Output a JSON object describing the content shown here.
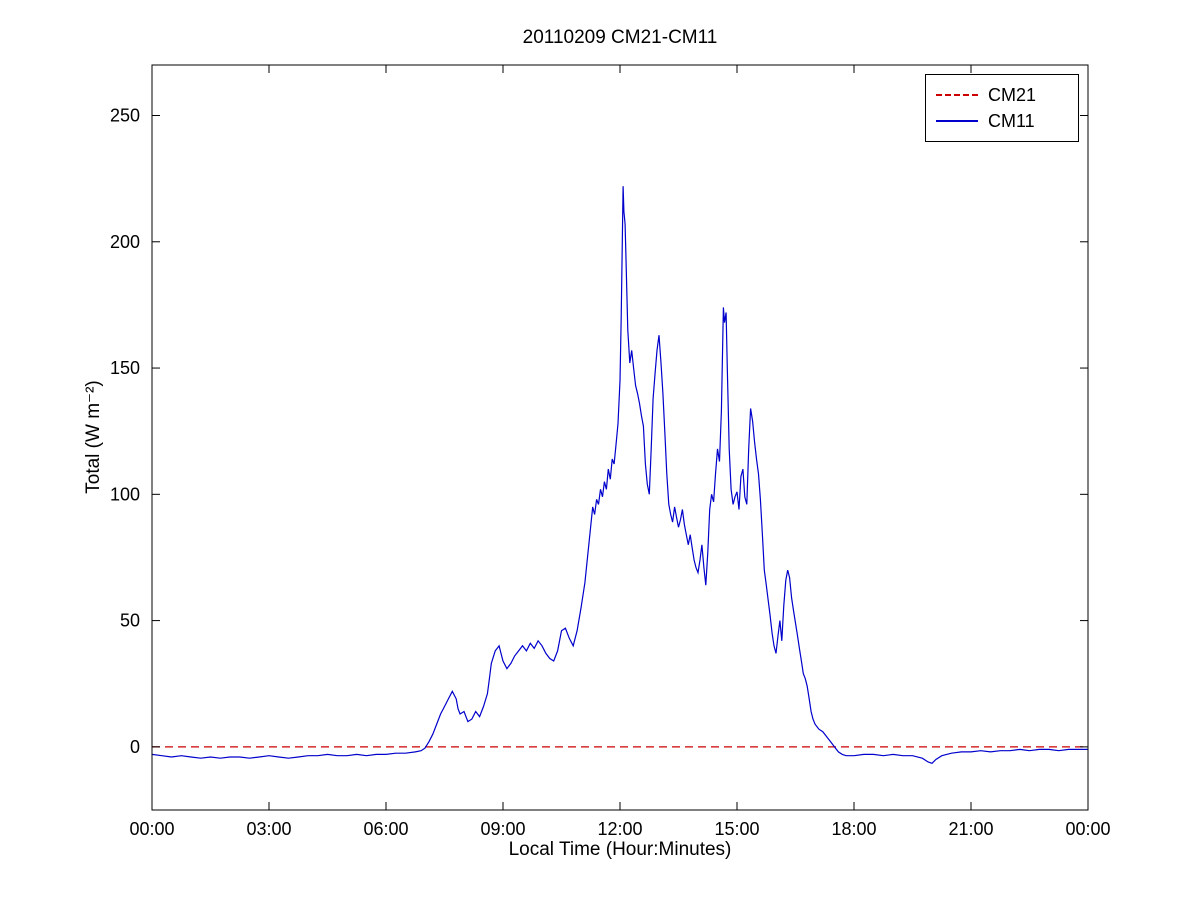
{
  "chart_data": {
    "type": "line",
    "title": "20110209 CM21-CM11",
    "xlabel": "Local Time (Hour:Minutes)",
    "ylabel": "Total (W m⁻²)",
    "xlim": [
      0,
      24
    ],
    "ylim": [
      -25,
      270
    ],
    "grid": false,
    "legend_position": "top-right",
    "xticks": [
      {
        "v": 0,
        "label": "00:00"
      },
      {
        "v": 3,
        "label": "03:00"
      },
      {
        "v": 6,
        "label": "06:00"
      },
      {
        "v": 9,
        "label": "09:00"
      },
      {
        "v": 12,
        "label": "12:00"
      },
      {
        "v": 15,
        "label": "15:00"
      },
      {
        "v": 18,
        "label": "18:00"
      },
      {
        "v": 21,
        "label": "21:00"
      },
      {
        "v": 24,
        "label": "00:00"
      }
    ],
    "yticks": [
      0,
      50,
      100,
      150,
      200,
      250
    ],
    "series": [
      {
        "name": "CM21",
        "color": "#cc0000",
        "line_style": "dashed",
        "points": [
          [
            0,
            0
          ],
          [
            24,
            0
          ]
        ]
      },
      {
        "name": "CM11",
        "color": "#0000cc",
        "line_style": "solid",
        "points": [
          [
            0,
            -3
          ],
          [
            0.25,
            -3.5
          ],
          [
            0.5,
            -4
          ],
          [
            0.75,
            -3.5
          ],
          [
            1,
            -4
          ],
          [
            1.25,
            -4.5
          ],
          [
            1.5,
            -4
          ],
          [
            1.75,
            -4.5
          ],
          [
            2,
            -4
          ],
          [
            2.25,
            -4
          ],
          [
            2.5,
            -4.5
          ],
          [
            2.75,
            -4
          ],
          [
            3,
            -3.5
          ],
          [
            3.25,
            -4
          ],
          [
            3.5,
            -4.5
          ],
          [
            3.75,
            -4
          ],
          [
            4,
            -3.5
          ],
          [
            4.25,
            -3.5
          ],
          [
            4.5,
            -3
          ],
          [
            4.75,
            -3.5
          ],
          [
            5,
            -3.5
          ],
          [
            5.25,
            -3
          ],
          [
            5.5,
            -3.5
          ],
          [
            5.75,
            -3
          ],
          [
            6,
            -3
          ],
          [
            6.25,
            -2.5
          ],
          [
            6.5,
            -2.5
          ],
          [
            6.75,
            -2
          ],
          [
            6.9,
            -1.5
          ],
          [
            7,
            -0.5
          ],
          [
            7.1,
            2
          ],
          [
            7.2,
            5
          ],
          [
            7.3,
            9
          ],
          [
            7.4,
            13
          ],
          [
            7.5,
            16
          ],
          [
            7.6,
            19
          ],
          [
            7.7,
            22
          ],
          [
            7.8,
            19
          ],
          [
            7.85,
            15
          ],
          [
            7.9,
            13
          ],
          [
            8,
            14
          ],
          [
            8.1,
            10
          ],
          [
            8.2,
            11
          ],
          [
            8.3,
            14
          ],
          [
            8.4,
            12
          ],
          [
            8.5,
            16
          ],
          [
            8.6,
            21
          ],
          [
            8.65,
            27
          ],
          [
            8.7,
            33
          ],
          [
            8.8,
            38
          ],
          [
            8.9,
            40
          ],
          [
            8.95,
            37
          ],
          [
            9,
            34
          ],
          [
            9.1,
            31
          ],
          [
            9.2,
            33
          ],
          [
            9.3,
            36
          ],
          [
            9.4,
            38
          ],
          [
            9.5,
            40
          ],
          [
            9.6,
            38
          ],
          [
            9.7,
            41
          ],
          [
            9.8,
            39
          ],
          [
            9.9,
            42
          ],
          [
            10,
            40
          ],
          [
            10.1,
            37
          ],
          [
            10.2,
            35
          ],
          [
            10.3,
            34
          ],
          [
            10.4,
            38
          ],
          [
            10.5,
            46
          ],
          [
            10.6,
            47
          ],
          [
            10.7,
            43
          ],
          [
            10.8,
            40
          ],
          [
            10.9,
            46
          ],
          [
            11,
            55
          ],
          [
            11.1,
            65
          ],
          [
            11.2,
            80
          ],
          [
            11.3,
            95
          ],
          [
            11.35,
            92
          ],
          [
            11.4,
            98
          ],
          [
            11.45,
            96
          ],
          [
            11.5,
            102
          ],
          [
            11.55,
            99
          ],
          [
            11.6,
            105
          ],
          [
            11.65,
            102
          ],
          [
            11.7,
            110
          ],
          [
            11.75,
            106
          ],
          [
            11.8,
            114
          ],
          [
            11.85,
            112
          ],
          [
            11.9,
            120
          ],
          [
            11.95,
            128
          ],
          [
            12,
            145
          ],
          [
            12.03,
            170
          ],
          [
            12.06,
            200
          ],
          [
            12.08,
            222
          ],
          [
            12.1,
            212
          ],
          [
            12.13,
            207
          ],
          [
            12.16,
            190
          ],
          [
            12.2,
            165
          ],
          [
            12.25,
            152
          ],
          [
            12.3,
            157
          ],
          [
            12.35,
            150
          ],
          [
            12.4,
            143
          ],
          [
            12.45,
            140
          ],
          [
            12.5,
            136
          ],
          [
            12.55,
            131
          ],
          [
            12.6,
            127
          ],
          [
            12.65,
            112
          ],
          [
            12.7,
            104
          ],
          [
            12.75,
            100
          ],
          [
            12.8,
            118
          ],
          [
            12.85,
            138
          ],
          [
            12.9,
            148
          ],
          [
            12.95,
            157
          ],
          [
            13,
            163
          ],
          [
            13.05,
            152
          ],
          [
            13.1,
            140
          ],
          [
            13.15,
            124
          ],
          [
            13.2,
            108
          ],
          [
            13.25,
            96
          ],
          [
            13.3,
            92
          ],
          [
            13.35,
            89
          ],
          [
            13.4,
            95
          ],
          [
            13.45,
            91
          ],
          [
            13.5,
            87
          ],
          [
            13.55,
            90
          ],
          [
            13.6,
            94
          ],
          [
            13.65,
            88
          ],
          [
            13.7,
            84
          ],
          [
            13.75,
            80
          ],
          [
            13.8,
            84
          ],
          [
            13.85,
            79
          ],
          [
            13.9,
            74
          ],
          [
            13.95,
            71
          ],
          [
            14,
            69
          ],
          [
            14.05,
            74
          ],
          [
            14.1,
            80
          ],
          [
            14.15,
            71
          ],
          [
            14.2,
            64
          ],
          [
            14.25,
            77
          ],
          [
            14.3,
            94
          ],
          [
            14.35,
            100
          ],
          [
            14.4,
            97
          ],
          [
            14.45,
            108
          ],
          [
            14.5,
            118
          ],
          [
            14.55,
            113
          ],
          [
            14.6,
            133
          ],
          [
            14.65,
            174
          ],
          [
            14.68,
            168
          ],
          [
            14.72,
            172
          ],
          [
            14.75,
            150
          ],
          [
            14.8,
            118
          ],
          [
            14.85,
            102
          ],
          [
            14.9,
            96
          ],
          [
            14.95,
            99
          ],
          [
            15,
            101
          ],
          [
            15.05,
            94
          ],
          [
            15.1,
            107
          ],
          [
            15.15,
            110
          ],
          [
            15.2,
            99
          ],
          [
            15.25,
            96
          ],
          [
            15.3,
            118
          ],
          [
            15.35,
            134
          ],
          [
            15.4,
            129
          ],
          [
            15.45,
            121
          ],
          [
            15.5,
            114
          ],
          [
            15.55,
            108
          ],
          [
            15.6,
            98
          ],
          [
            15.65,
            84
          ],
          [
            15.7,
            70
          ],
          [
            15.75,
            64
          ],
          [
            15.8,
            58
          ],
          [
            15.85,
            52
          ],
          [
            15.9,
            45
          ],
          [
            15.95,
            40
          ],
          [
            16,
            37
          ],
          [
            16.05,
            44
          ],
          [
            16.1,
            50
          ],
          [
            16.15,
            42
          ],
          [
            16.2,
            56
          ],
          [
            16.25,
            66
          ],
          [
            16.3,
            70
          ],
          [
            16.35,
            67
          ],
          [
            16.4,
            59
          ],
          [
            16.45,
            54
          ],
          [
            16.5,
            49
          ],
          [
            16.55,
            44
          ],
          [
            16.6,
            39
          ],
          [
            16.65,
            34
          ],
          [
            16.7,
            29
          ],
          [
            16.75,
            27
          ],
          [
            16.8,
            24
          ],
          [
            16.85,
            19
          ],
          [
            16.9,
            14
          ],
          [
            16.95,
            11
          ],
          [
            17,
            9
          ],
          [
            17.1,
            7
          ],
          [
            17.2,
            6
          ],
          [
            17.3,
            4
          ],
          [
            17.4,
            2
          ],
          [
            17.5,
            0
          ],
          [
            17.6,
            -2
          ],
          [
            17.7,
            -3
          ],
          [
            17.8,
            -3.5
          ],
          [
            18,
            -3.5
          ],
          [
            18.25,
            -3
          ],
          [
            18.5,
            -3
          ],
          [
            18.75,
            -3.5
          ],
          [
            19,
            -3
          ],
          [
            19.25,
            -3.5
          ],
          [
            19.5,
            -3.5
          ],
          [
            19.75,
            -4.5
          ],
          [
            19.9,
            -6
          ],
          [
            20,
            -6.5
          ],
          [
            20.1,
            -5
          ],
          [
            20.25,
            -3.5
          ],
          [
            20.5,
            -2.5
          ],
          [
            20.75,
            -2
          ],
          [
            21,
            -2
          ],
          [
            21.25,
            -1.5
          ],
          [
            21.5,
            -2
          ],
          [
            21.75,
            -1.5
          ],
          [
            22,
            -1.5
          ],
          [
            22.25,
            -1
          ],
          [
            22.5,
            -1.5
          ],
          [
            22.75,
            -1
          ],
          [
            23,
            -1
          ],
          [
            23.25,
            -1.5
          ],
          [
            23.5,
            -1
          ],
          [
            23.75,
            -1
          ],
          [
            24,
            -1
          ]
        ]
      }
    ]
  }
}
